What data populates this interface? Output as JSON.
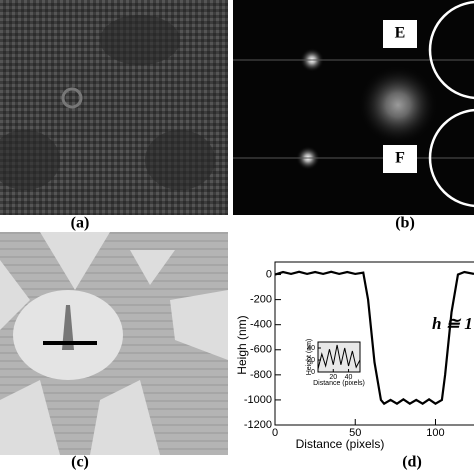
{
  "panel_labels": [
    "(a)",
    "(b)",
    "(c)",
    "(d)"
  ],
  "fft_labels": [
    "E",
    "F"
  ],
  "chart_data": [
    {
      "type": "line",
      "xlabel": "Distance (pixels)",
      "ylabel": "Heigh (nm)",
      "annotation": "h ≅ 1",
      "x": [
        0,
        5,
        10,
        15,
        20,
        25,
        30,
        35,
        40,
        45,
        50,
        55,
        58,
        62,
        66,
        68,
        72,
        76,
        80,
        84,
        88,
        92,
        96,
        100,
        104,
        106,
        110,
        114,
        118,
        124
      ],
      "series": [
        {
          "color": "#000000",
          "values": [
            0,
            20,
            5,
            22,
            5,
            20,
            5,
            22,
            5,
            20,
            5,
            15,
            -200,
            -700,
            -1000,
            -1030,
            -1000,
            -1030,
            -995,
            -1030,
            -1000,
            -1030,
            -995,
            -1030,
            -1000,
            -800,
            -300,
            0,
            20,
            5
          ]
        }
      ],
      "xlim": [
        0,
        124
      ],
      "ylim": [
        -1200,
        100
      ],
      "xticks": [
        0,
        50,
        100
      ],
      "yticks": [
        0,
        -200,
        -400,
        -600,
        -800,
        -1000,
        -1200
      ]
    },
    {
      "type": "line",
      "xlabel": "Distance (pixels)",
      "ylabel": "Height (nm)",
      "x": [
        0,
        5,
        10,
        15,
        20,
        25,
        30,
        35,
        40,
        45,
        50,
        55
      ],
      "series": [
        {
          "color": "#000000",
          "values": [
            5,
            30,
            10,
            38,
            12,
            45,
            12,
            40,
            10,
            35,
            8,
            20
          ]
        }
      ],
      "xlim": [
        0,
        55
      ],
      "ylim": [
        0,
        50
      ],
      "xticks": [
        20,
        40
      ],
      "yticks": [
        0,
        20,
        40
      ]
    }
  ]
}
